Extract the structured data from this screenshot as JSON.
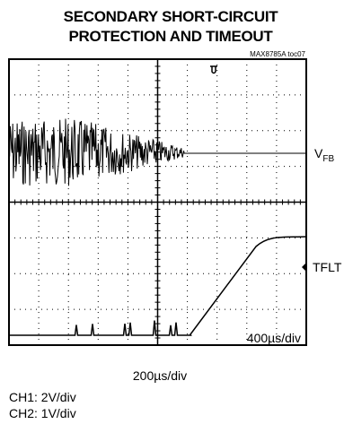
{
  "header": {
    "title_line1": "SECONDARY SHORT-CIRCUIT",
    "title_line2": "PROTECTION AND TIMEOUT",
    "tag": "MAX8785A toc07"
  },
  "traces": {
    "ch1_main": "V",
    "ch1_sub": "FB",
    "ch2": "TFLT"
  },
  "screen": {
    "zoom_scale": "400µs/div"
  },
  "footer": {
    "timebase": "200µs/div",
    "ch1_scale": "CH1: 2V/div",
    "ch2_scale": "CH2: 1V/div"
  }
}
